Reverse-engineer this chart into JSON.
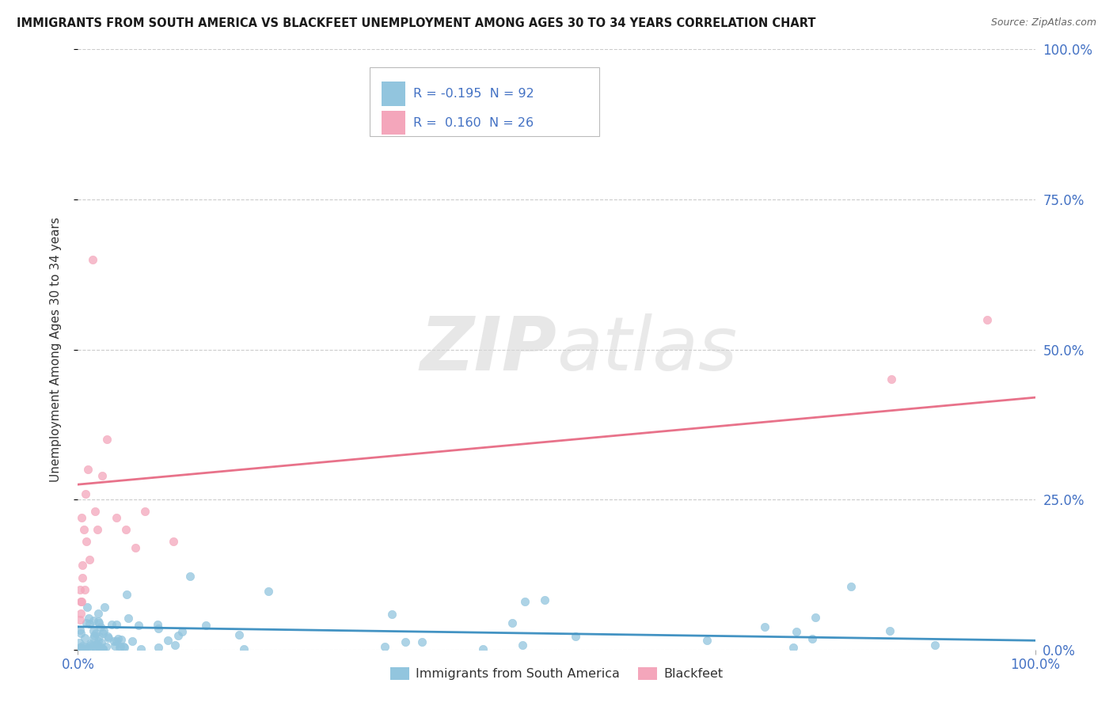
{
  "title": "IMMIGRANTS FROM SOUTH AMERICA VS BLACKFEET UNEMPLOYMENT AMONG AGES 30 TO 34 YEARS CORRELATION CHART",
  "source": "Source: ZipAtlas.com",
  "ylabel": "Unemployment Among Ages 30 to 34 years",
  "ytick_labels": [
    "0.0%",
    "25.0%",
    "50.0%",
    "75.0%",
    "100.0%"
  ],
  "ytick_values": [
    0.0,
    0.25,
    0.5,
    0.75,
    1.0
  ],
  "blue_R": -0.195,
  "blue_N": 92,
  "pink_R": 0.16,
  "pink_N": 26,
  "blue_color": "#92c5de",
  "pink_color": "#f4a6bb",
  "blue_trend_color": "#4393c3",
  "pink_trend_color": "#e8728a",
  "blue_trend_x": [
    0.0,
    1.0
  ],
  "blue_trend_y": [
    0.038,
    0.015
  ],
  "pink_trend_x": [
    0.0,
    1.0
  ],
  "pink_trend_y": [
    0.275,
    0.42
  ],
  "background_color": "#ffffff",
  "grid_color": "#cccccc",
  "legend_label_blue": "Immigrants from South America",
  "legend_label_pink": "Blackfeet",
  "xlim": [
    0.0,
    1.0
  ],
  "ylim": [
    0.0,
    1.0
  ]
}
